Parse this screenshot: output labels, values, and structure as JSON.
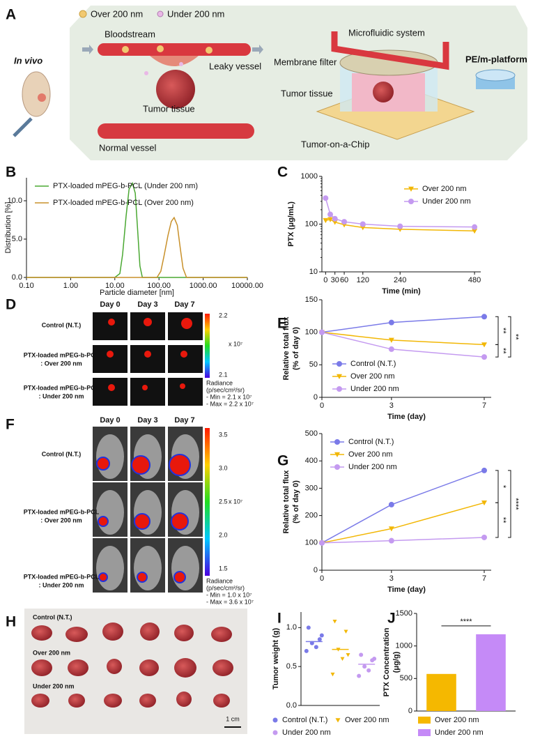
{
  "figure": {
    "a": {
      "label": "A",
      "legend": [
        "Over 200 nm",
        "Under 200 nm"
      ],
      "in_vivo": "In vivo",
      "bloodstream": "Bloodstream",
      "leaky_vessel": "Leaky vessel",
      "tumor_tissue": "Tumor tissue",
      "normal_vessel": "Normal vessel",
      "microfluidic": "Microfluidic system",
      "membrane_filter": "Membrane filter",
      "chip_tumor_tissue": "Tumor tissue",
      "chip": "Tumor-on-a-Chip",
      "platform": "PE/m-platform"
    },
    "d": {
      "label": "D",
      "days": [
        "Day 0",
        "Day 3",
        "Day 7"
      ],
      "rows": [
        [
          "Control (N.T.)"
        ],
        [
          "PTX-loaded mPEG-b-PCL",
          ": Over 200 nm"
        ],
        [
          "PTX-loaded mPEG-b-PCL",
          ": Under 200 nm"
        ]
      ],
      "colorbar": [
        "2.2",
        "2.1"
      ],
      "scale": "x 10⁷",
      "radiance": [
        "Radiance",
        "(p/sec/cm²/sr)",
        "- Min = 2.1 x 10⁷",
        "- Max = 2.2 x 10⁷"
      ]
    },
    "f": {
      "label": "F",
      "days": [
        "Day 0",
        "Day 3",
        "Day 7"
      ],
      "rows": [
        [
          "Control (N.T.)"
        ],
        [
          "PTX-loaded mPEG-b-PCL",
          ": Over 200 nm"
        ],
        [
          "PTX-loaded mPEG-b-PCL",
          ": Under 200 nm"
        ]
      ],
      "colorbar": [
        "3.5",
        "3.0",
        "2.5",
        "2.0",
        "1.5"
      ],
      "scale": "x 10⁷",
      "radiance": [
        "Radiance",
        "(p/sec/cm²/sr)",
        "- Min = 1.0 x 10⁷",
        "- Max = 3.6 x 10⁷"
      ]
    },
    "h": {
      "label": "H",
      "rows": [
        "Control (N.T.)",
        "Over 200 nm",
        "Under 200 nm"
      ],
      "scale": "1 cm"
    }
  },
  "chart_data": [
    {
      "type": "line",
      "panel": "B",
      "xlabel": "Particle diameter [nm]",
      "ylabel": "Distribution [%]",
      "xscale": "log",
      "xlim": [
        0.1,
        10000
      ],
      "xticks": [
        {
          "value": 0.1,
          "label": "0.10"
        },
        {
          "value": 1,
          "label": "1.00"
        },
        {
          "value": 10,
          "label": "10.00"
        },
        {
          "value": 100,
          "label": "100.00"
        },
        {
          "value": 1000,
          "label": "1000.00"
        },
        {
          "value": 10000,
          "label": "10000.00"
        }
      ],
      "ylim": [
        0,
        13
      ],
      "yticks": [
        {
          "value": 0,
          "label": "0.0"
        },
        {
          "value": 5,
          "label": "5.0"
        },
        {
          "value": 10,
          "label": "10.0"
        }
      ],
      "legend": "upper left",
      "series": [
        {
          "name": "PTX-loaded mPEG-b-PCL (Under 200 nm)",
          "color": "#4aa832",
          "x": [
            0.1,
            10,
            13,
            15,
            18,
            21,
            25,
            29,
            33,
            37,
            42,
            10000
          ],
          "values": [
            0,
            0,
            0.5,
            3,
            8,
            11.5,
            12.3,
            11,
            6,
            1.5,
            0,
            0
          ]
        },
        {
          "name": "PTX-loaded mPEG-b-PCL (Over 200 nm)",
          "color": "#c8902a",
          "x": [
            0.1,
            90,
            110,
            130,
            160,
            190,
            220,
            260,
            300,
            350,
            420,
            10000
          ],
          "values": [
            0,
            0,
            0.8,
            2.8,
            5.5,
            7.3,
            7.8,
            6.8,
            4,
            1.2,
            0,
            0
          ]
        }
      ]
    },
    {
      "type": "line",
      "panel": "C",
      "xlabel": "Time (min)",
      "ylabel": "PTX (μg/mL)",
      "yscale": "log",
      "xlim": [
        -12,
        500
      ],
      "xticks": [
        0,
        30,
        60,
        120,
        240,
        480
      ],
      "ylim": [
        10,
        1000
      ],
      "yticks": [
        10,
        100,
        1000
      ],
      "legend": "upper right",
      "x": [
        0,
        15,
        30,
        60,
        120,
        240,
        480
      ],
      "series": [
        {
          "name": "Over 200 nm",
          "color": "#f2b705",
          "marker": "triangle-down",
          "values": [
            120,
            125,
            110,
            97,
            85,
            78,
            72
          ]
        },
        {
          "name": "Under 200 nm",
          "color": "#c49af0",
          "marker": "circle",
          "values": [
            350,
            160,
            130,
            112,
            100,
            90,
            87
          ]
        }
      ]
    },
    {
      "type": "line",
      "panel": "E",
      "xlabel": "Time (day)",
      "ylabel": [
        "Relative total flux",
        "(% of day 0)"
      ],
      "xlim": [
        0,
        7.3
      ],
      "xticks": [
        0,
        3,
        7
      ],
      "ylim": [
        0,
        150
      ],
      "yticks": [
        0,
        50,
        100,
        150
      ],
      "legend": "lower left",
      "x": [
        0,
        3,
        7
      ],
      "annotations": [
        "**",
        "**",
        "**"
      ],
      "series": [
        {
          "name": "Control (N.T.)",
          "color": "#7a7ae8",
          "marker": "circle",
          "values": [
            100,
            115,
            124
          ]
        },
        {
          "name": "Over 200 nm",
          "color": "#f2b705",
          "marker": "triangle-down",
          "values": [
            100,
            88,
            81
          ]
        },
        {
          "name": "Under 200 nm",
          "color": "#c49af0",
          "marker": "circle",
          "values": [
            100,
            74,
            62
          ]
        }
      ]
    },
    {
      "type": "line",
      "panel": "G",
      "xlabel": "Time (day)",
      "ylabel": [
        "Relative total flux",
        "(% of day 0)"
      ],
      "xlim": [
        0,
        7.3
      ],
      "xticks": [
        0,
        3,
        7
      ],
      "ylim": [
        0,
        500
      ],
      "yticks": [
        0,
        100,
        200,
        300,
        400,
        500
      ],
      "legend": "upper left",
      "x": [
        0,
        3,
        7
      ],
      "annotations": [
        "*",
        "**",
        "****"
      ],
      "series": [
        {
          "name": "Control (N.T.)",
          "color": "#7a7ae8",
          "marker": "circle",
          "values": [
            100,
            240,
            365
          ]
        },
        {
          "name": "Over 200 nm",
          "color": "#f2b705",
          "marker": "triangle-down",
          "values": [
            100,
            152,
            247
          ]
        },
        {
          "name": "Under 200 nm",
          "color": "#c49af0",
          "marker": "circle",
          "values": [
            100,
            108,
            120
          ]
        }
      ]
    },
    {
      "type": "strip",
      "panel": "I",
      "ylabel": "Tumor weight (g)",
      "ylim": [
        0,
        1.2
      ],
      "yticks": [
        {
          "value": 0,
          "label": "0.0"
        },
        {
          "value": 0.5,
          "label": "0.5"
        },
        {
          "value": 1,
          "label": "1.0"
        }
      ],
      "legend": "bottom",
      "series": [
        {
          "name": "Control (N.T.)",
          "color": "#7a7ae8",
          "marker": "circle",
          "values": [
            1.0,
            0.85,
            0.8,
            0.75,
            0.7,
            0.9
          ],
          "mean": 0.82
        },
        {
          "name": "Over 200 nm",
          "color": "#f2b705",
          "marker": "triangle-down",
          "values": [
            1.08,
            0.95,
            0.72,
            0.6,
            0.4,
            0.65
          ],
          "mean": 0.72
        },
        {
          "name": "Under 200 nm",
          "color": "#c49af0",
          "marker": "circle",
          "values": [
            0.65,
            0.58,
            0.5,
            0.45,
            0.38,
            0.6
          ],
          "mean": 0.53
        }
      ]
    },
    {
      "type": "bar",
      "panel": "J",
      "ylabel": [
        "PTX Concentration",
        "(μg/g)"
      ],
      "ylim": [
        0,
        1500
      ],
      "yticks": [
        0,
        500,
        1000,
        1500
      ],
      "legend": "bottom",
      "annotations": [
        "****"
      ],
      "series": [
        {
          "name": "Over 200 nm",
          "color": "#f5b800",
          "values": [
            570
          ]
        },
        {
          "name": "Under 200 nm",
          "color": "#c58af7",
          "values": [
            1180
          ]
        }
      ]
    }
  ]
}
